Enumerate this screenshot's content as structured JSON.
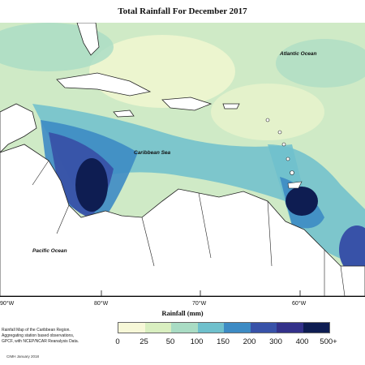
{
  "title": "Total Rainfall For December 2017",
  "labels": {
    "atlantic": "Atlantic Ocean",
    "caribbean": "Caribbean Sea",
    "pacific": "Pacific Ocean"
  },
  "lon_ticks": [
    "90°W",
    "80°W",
    "70°W",
    "60°W"
  ],
  "axis_title": "Rainfall (mm)",
  "legend": {
    "levels": [
      "0",
      "25",
      "50",
      "100",
      "150",
      "200",
      "300",
      "400",
      "500+"
    ],
    "colors": [
      "#ffffff",
      "#f7f8d8",
      "#d9efc0",
      "#a9dcc4",
      "#6fc0cc",
      "#3d8bc4",
      "#3852a8",
      "#33318a",
      "#0e1d52"
    ]
  },
  "caption_lines": [
    "Rainfall Map of the Caribbean Region.",
    "Aggregating station based observations,",
    "GPCF, with NCEP/NCAR Reanalysis Data."
  ],
  "credit": "CIMH January 2018"
}
